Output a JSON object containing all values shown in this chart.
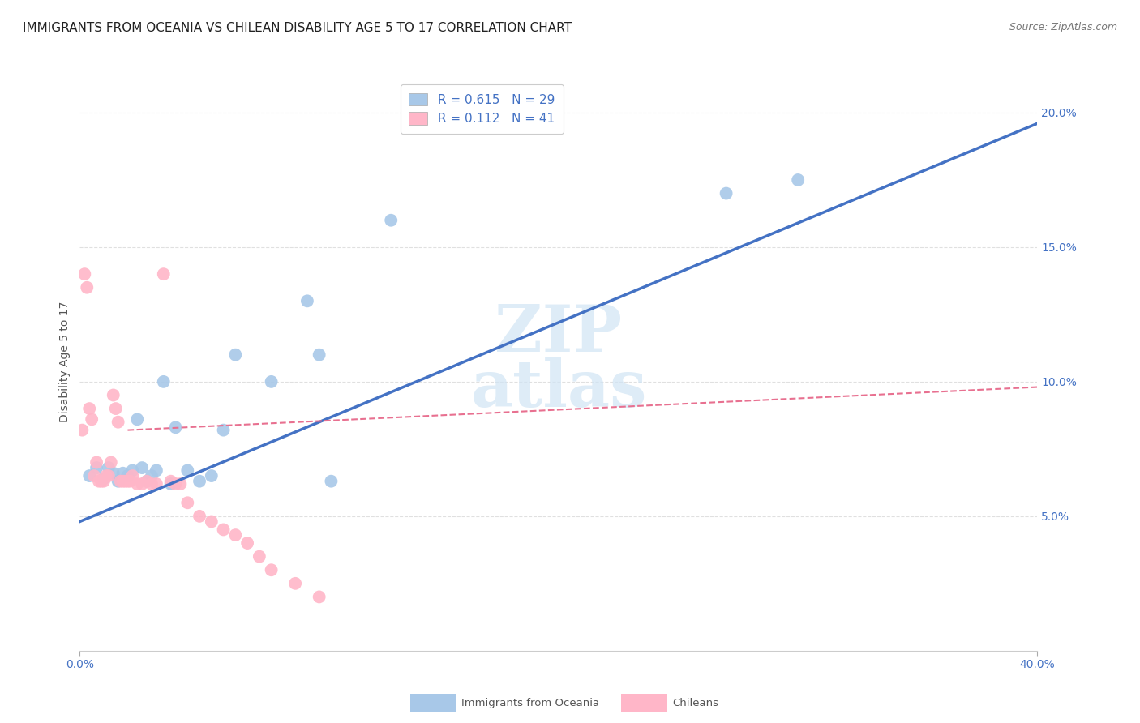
{
  "title": "IMMIGRANTS FROM OCEANIA VS CHILEAN DISABILITY AGE 5 TO 17 CORRELATION CHART",
  "source": "Source: ZipAtlas.com",
  "ylabel": "Disability Age 5 to 17",
  "xlim": [
    0.0,
    0.4
  ],
  "ylim": [
    0.0,
    0.215
  ],
  "yticks": [
    0.05,
    0.1,
    0.15,
    0.2
  ],
  "ytick_labels": [
    "5.0%",
    "10.0%",
    "15.0%",
    "20.0%"
  ],
  "xtick_left": 0.0,
  "xtick_right": 0.4,
  "xtick_left_label": "0.0%",
  "xtick_right_label": "40.0%",
  "legend_r1": "R = 0.615",
  "legend_n1": "N = 29",
  "legend_r2": "R = 0.112",
  "legend_n2": "N = 41",
  "color_blue_scatter": "#a8c8e8",
  "color_pink_scatter": "#ffb6c8",
  "color_blue_text": "#4472c4",
  "color_blue_line": "#4472c4",
  "color_pink_line": "#e87090",
  "color_grid": "#e0e0e0",
  "watermark_color": "#d0e4f4",
  "legend_label1": "Immigrants from Oceania",
  "legend_label2": "Chileans",
  "blue_scatter_x": [
    0.004,
    0.007,
    0.01,
    0.012,
    0.014,
    0.016,
    0.018,
    0.02,
    0.022,
    0.024,
    0.026,
    0.028,
    0.03,
    0.032,
    0.035,
    0.038,
    0.04,
    0.045,
    0.05,
    0.055,
    0.06,
    0.065,
    0.08,
    0.095,
    0.1,
    0.105,
    0.13,
    0.27,
    0.3
  ],
  "blue_scatter_y": [
    0.065,
    0.068,
    0.064,
    0.068,
    0.066,
    0.063,
    0.066,
    0.065,
    0.067,
    0.086,
    0.068,
    0.063,
    0.065,
    0.067,
    0.1,
    0.062,
    0.083,
    0.067,
    0.063,
    0.065,
    0.082,
    0.11,
    0.1,
    0.13,
    0.11,
    0.063,
    0.16,
    0.17,
    0.175
  ],
  "pink_scatter_x": [
    0.001,
    0.002,
    0.003,
    0.004,
    0.005,
    0.006,
    0.007,
    0.008,
    0.009,
    0.01,
    0.011,
    0.012,
    0.013,
    0.014,
    0.015,
    0.016,
    0.017,
    0.018,
    0.019,
    0.02,
    0.021,
    0.022,
    0.024,
    0.026,
    0.028,
    0.03,
    0.032,
    0.035,
    0.038,
    0.04,
    0.042,
    0.045,
    0.05,
    0.055,
    0.06,
    0.065,
    0.07,
    0.075,
    0.08,
    0.09,
    0.1
  ],
  "pink_scatter_y": [
    0.082,
    0.14,
    0.135,
    0.09,
    0.086,
    0.065,
    0.07,
    0.063,
    0.063,
    0.063,
    0.065,
    0.065,
    0.07,
    0.095,
    0.09,
    0.085,
    0.063,
    0.063,
    0.063,
    0.063,
    0.063,
    0.065,
    0.062,
    0.062,
    0.063,
    0.062,
    0.062,
    0.14,
    0.063,
    0.062,
    0.062,
    0.055,
    0.05,
    0.048,
    0.045,
    0.043,
    0.04,
    0.035,
    0.03,
    0.025,
    0.02
  ],
  "blue_line_x": [
    0.0,
    0.4
  ],
  "blue_line_y": [
    0.048,
    0.196
  ],
  "pink_line_x": [
    0.02,
    0.4
  ],
  "pink_line_y": [
    0.082,
    0.098
  ],
  "background_color": "#ffffff",
  "title_fontsize": 11,
  "axis_label_fontsize": 10,
  "tick_fontsize": 10,
  "legend_fontsize": 11,
  "source_fontsize": 9
}
